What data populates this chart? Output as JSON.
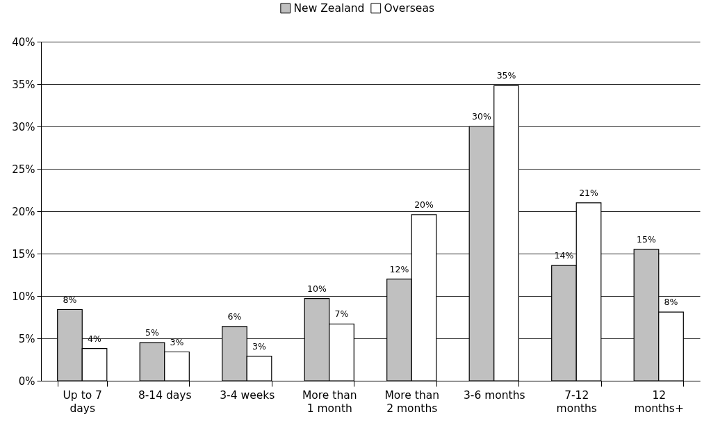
{
  "chart_data": {
    "type": "bar",
    "categories": [
      "Up to 7 days",
      "8-14 days",
      "3-4 weeks",
      "More than 1 month",
      "More than 2 months",
      "3-6 months",
      "7-12 months",
      "12 months+"
    ],
    "series": [
      {
        "name": "New Zealand",
        "color": "#c0c0c0",
        "values": [
          8.4,
          4.5,
          6.4,
          9.7,
          12.0,
          30.0,
          13.6,
          15.5
        ],
        "value_labels": [
          "8%",
          "5%",
          "6%",
          "10%",
          "12%",
          "30%",
          "14%",
          "15%"
        ]
      },
      {
        "name": "Overseas",
        "color": "#ffffff",
        "values": [
          3.8,
          3.4,
          2.9,
          6.7,
          19.6,
          34.8,
          21.0,
          8.1
        ],
        "value_labels": [
          "4%",
          "3%",
          "3%",
          "7%",
          "20%",
          "35%",
          "21%",
          "8%"
        ]
      }
    ],
    "ylim": [
      0,
      40
    ],
    "yticks": [
      {
        "value": 0,
        "label": "0%"
      },
      {
        "value": 5,
        "label": "5%"
      },
      {
        "value": 10,
        "label": "10%"
      },
      {
        "value": 15,
        "label": "15%"
      },
      {
        "value": 20,
        "label": "20%"
      },
      {
        "value": 25,
        "label": "25%"
      },
      {
        "value": 30,
        "label": "30%"
      },
      {
        "value": 35,
        "label": "35%"
      },
      {
        "value": 40,
        "label": "40%"
      }
    ],
    "grid": "y",
    "legend": "top"
  }
}
